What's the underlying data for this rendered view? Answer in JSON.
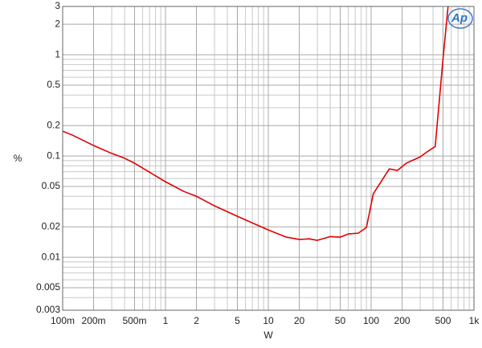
{
  "chart_data": {
    "type": "line",
    "logo": "Ap",
    "xlabel": "W",
    "ylabel": "%",
    "xscale": "log",
    "yscale": "log",
    "grid": true,
    "xlim": [
      0.1,
      1000
    ],
    "ylim": [
      0.003,
      3
    ],
    "xticks": [
      {
        "value": 0.1,
        "label": "100m"
      },
      {
        "value": 0.2,
        "label": "200m"
      },
      {
        "value": 0.5,
        "label": "500m"
      },
      1,
      2,
      5,
      10,
      20,
      50,
      100,
      200,
      500,
      {
        "value": 1000,
        "label": "1k"
      }
    ],
    "yticks": [
      0.003,
      0.005,
      0.01,
      0.02,
      0.05,
      0.1,
      0.2,
      0.5,
      1,
      2,
      3
    ],
    "xgrid_minor": [
      0.3,
      0.4,
      0.6,
      0.7,
      0.8,
      0.9,
      3,
      4,
      6,
      7,
      8,
      9,
      30,
      40,
      60,
      70,
      80,
      90,
      300,
      400,
      600,
      700,
      800,
      900
    ],
    "ygrid_minor": [
      0.004,
      0.006,
      0.007,
      0.008,
      0.009,
      0.03,
      0.04,
      0.06,
      0.07,
      0.08,
      0.09,
      0.3,
      0.4,
      0.6,
      0.7,
      0.8,
      0.9
    ],
    "x": [
      0.1,
      0.124,
      0.2,
      0.3,
      0.4,
      0.5,
      1,
      1.5,
      2,
      3,
      5,
      10,
      15,
      20,
      25,
      30,
      40,
      50,
      60,
      75,
      90,
      105,
      150,
      180,
      220,
      300,
      350,
      420,
      500,
      560
    ],
    "series": [
      {
        "color": "#e00000",
        "values": [
          0.176,
          0.161,
          0.127,
          0.106,
          0.095,
          0.085,
          0.0557,
          0.0448,
          0.04,
          0.0322,
          0.0254,
          0.0186,
          0.0158,
          0.015,
          0.0152,
          0.0147,
          0.016,
          0.0158,
          0.017,
          0.0173,
          0.0197,
          0.0424,
          0.0746,
          0.072,
          0.085,
          0.098,
          0.11,
          0.124,
          0.91,
          3
        ]
      }
    ]
  }
}
